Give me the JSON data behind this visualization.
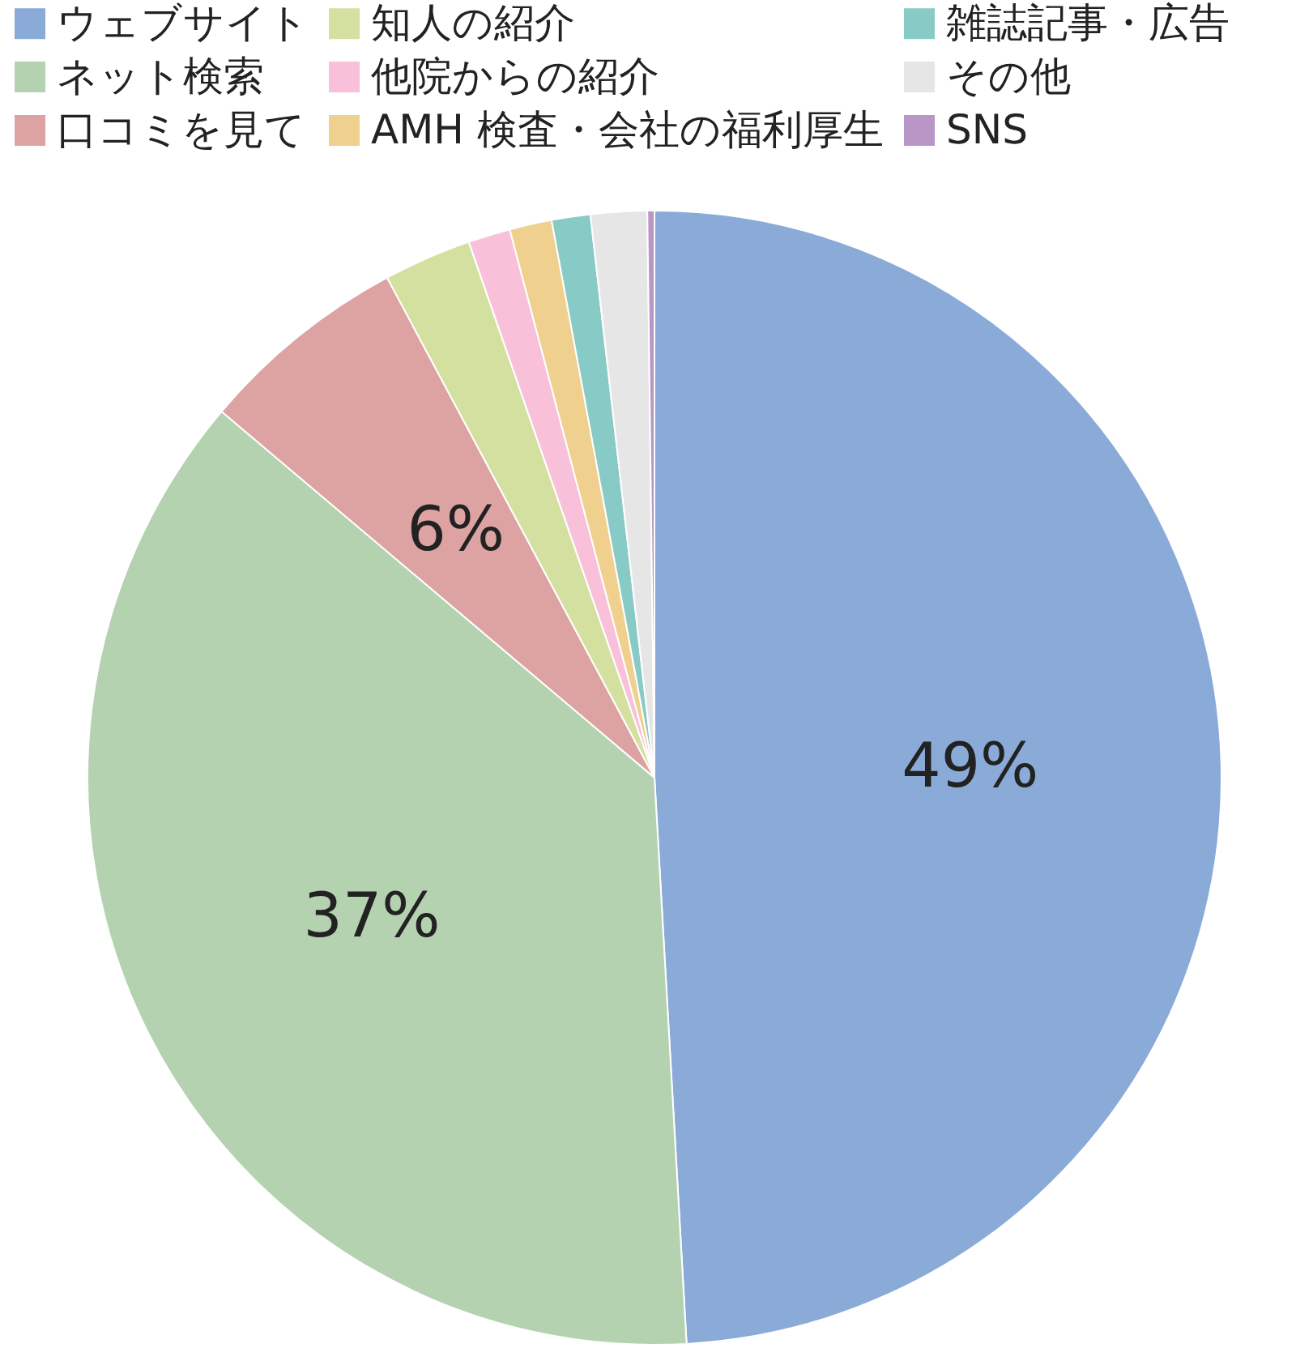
{
  "chart_data": {
    "type": "pie",
    "categories": [
      "ウェブサイト",
      "ネット検索",
      "口コミを見て",
      "知人の紹介",
      "他院からの紹介",
      "AMH 検査・会社の福利厚生",
      "雑誌記事・広告",
      "その他",
      "SNS"
    ],
    "values": [
      49,
      37,
      6,
      2.5,
      1.2,
      1.2,
      1.1,
      1.6,
      0.2
    ],
    "colors": [
      "#8aaad8",
      "#b4d1b0",
      "#dda3a2",
      "#d3e0a0",
      "#f9c0da",
      "#f0d08e",
      "#88cbc6",
      "#e6e6e6",
      "#b896c6"
    ],
    "value_labels": [
      "49%",
      "37%",
      "6%",
      null,
      null,
      null,
      null,
      null,
      null
    ],
    "legend": "top"
  }
}
